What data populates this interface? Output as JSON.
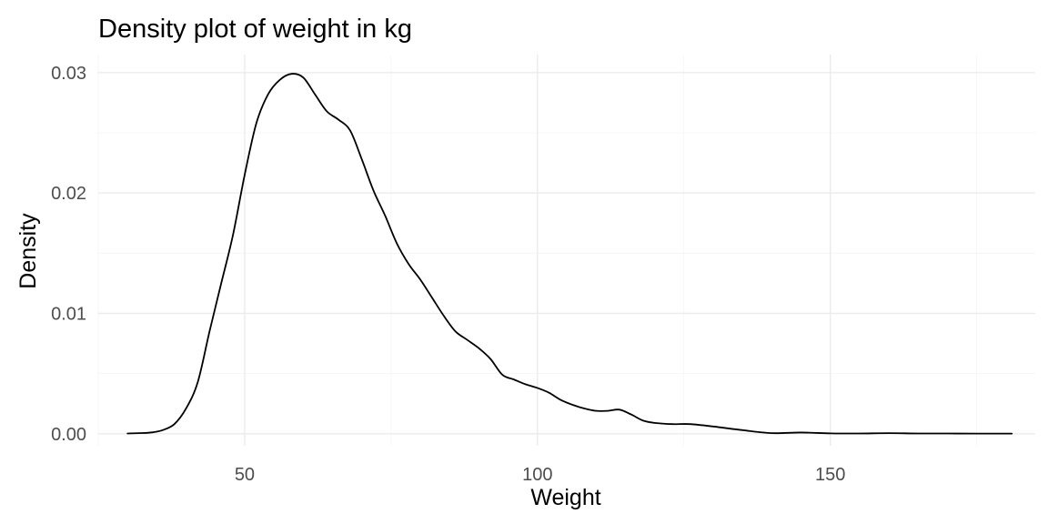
{
  "chart_data": {
    "type": "line",
    "title": "Density plot of weight in kg",
    "xlabel": "Weight",
    "ylabel": "Density",
    "xlim": [
      25,
      185
    ],
    "ylim": [
      -0.001,
      0.0315
    ],
    "x_ticks": [
      50,
      100,
      150
    ],
    "x_tick_labels": [
      "50",
      "100",
      "150"
    ],
    "y_ticks": [
      0,
      0.01,
      0.02,
      0.03
    ],
    "y_tick_labels": [
      "0.00",
      "0.01",
      "0.02",
      "0.03"
    ],
    "grid": true,
    "line_color": "#000000",
    "series": [
      {
        "x": [
          30,
          32,
          34,
          36,
          38,
          40,
          42,
          44,
          46,
          48,
          50,
          52,
          54,
          56,
          58,
          60,
          62,
          64,
          66,
          68,
          70,
          72,
          74,
          76,
          78,
          80,
          82,
          84,
          86,
          88,
          90,
          92,
          94,
          96,
          98,
          100,
          102,
          104,
          106,
          108,
          110,
          112,
          114,
          116,
          118,
          120,
          123,
          126,
          130,
          135,
          140,
          145,
          150,
          155,
          160,
          165,
          170,
          175,
          181
        ],
        "y": [
          2e-05,
          5e-05,
          0.0001,
          0.0003,
          0.0008,
          0.0021,
          0.0043,
          0.0085,
          0.0125,
          0.0165,
          0.0215,
          0.0258,
          0.0282,
          0.0294,
          0.0299,
          0.0296,
          0.0282,
          0.0268,
          0.0261,
          0.0252,
          0.0228,
          0.0202,
          0.0181,
          0.0158,
          0.0141,
          0.0128,
          0.0113,
          0.0098,
          0.0085,
          0.0078,
          0.0071,
          0.0062,
          0.0049,
          0.0045,
          0.0041,
          0.0038,
          0.0034,
          0.0028,
          0.0024,
          0.0021,
          0.0019,
          0.0019,
          0.002,
          0.0016,
          0.0011,
          0.0009,
          0.0008,
          0.0008,
          0.0006,
          0.0003,
          5e-05,
          0.0001,
          3e-05,
          2e-05,
          5e-05,
          2e-05,
          2e-05,
          1e-05,
          1e-05
        ]
      }
    ]
  }
}
